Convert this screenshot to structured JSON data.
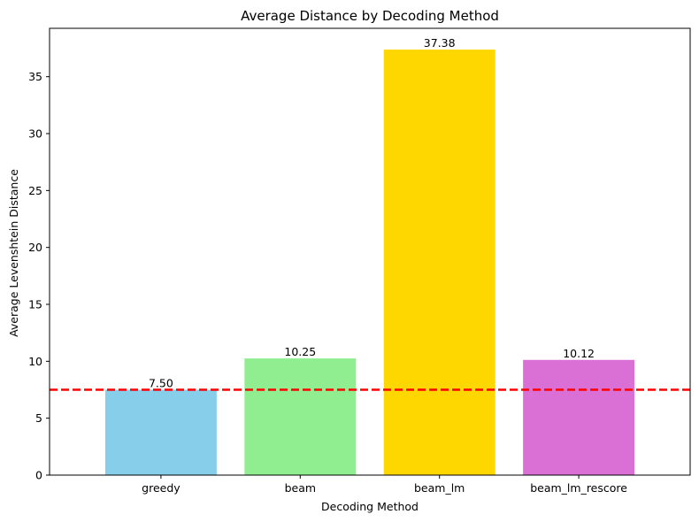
{
  "chart_data": {
    "type": "bar",
    "title": "Average Distance by Decoding Method",
    "xlabel": "Decoding Method",
    "ylabel": "Average Levenshtein Distance",
    "categories": [
      "greedy",
      "beam",
      "beam_lm",
      "beam_lm_rescore"
    ],
    "values": [
      7.5,
      10.25,
      37.38,
      10.12
    ],
    "data_labels": [
      "7.50",
      "10.25",
      "37.38",
      "10.12"
    ],
    "colors": [
      "#87ceeb",
      "#90ee90",
      "#ffd700",
      "#da70d6"
    ],
    "ylim": [
      0,
      39.25
    ],
    "yticks": [
      0,
      5,
      10,
      15,
      20,
      25,
      30,
      35
    ],
    "grid": false,
    "reference_line": {
      "value": 7.5,
      "color": "#ff0000",
      "style": "dashed"
    }
  }
}
